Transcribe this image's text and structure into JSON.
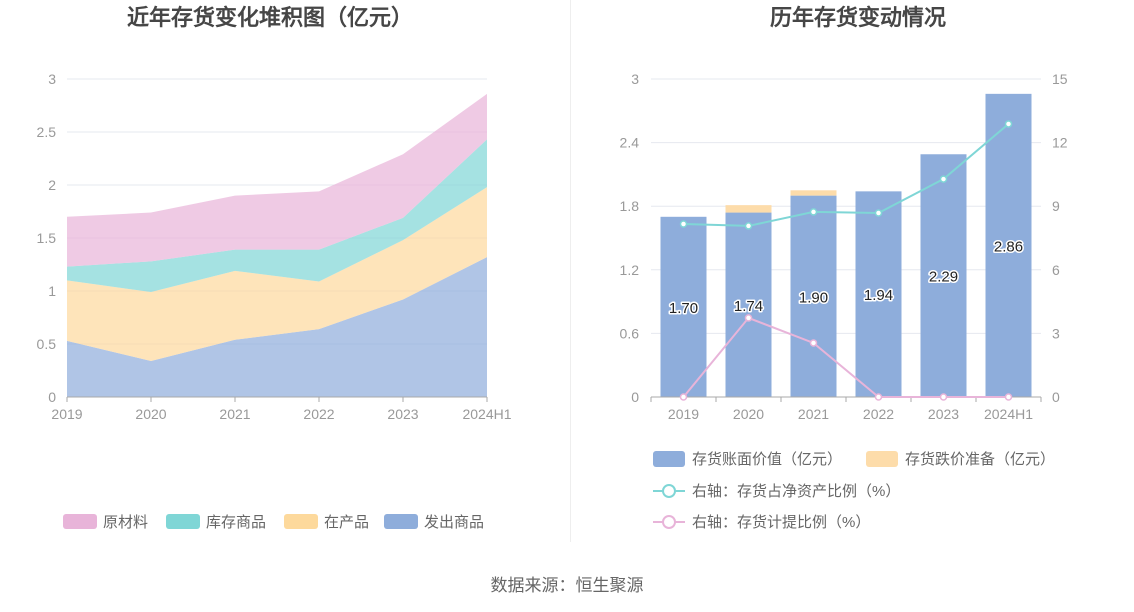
{
  "chart_data": [
    {
      "type": "area",
      "stacked": true,
      "title": "近年存货变化堆积图（亿元）",
      "categories": [
        "2019",
        "2020",
        "2021",
        "2022",
        "2023",
        "2024H1"
      ],
      "series": [
        {
          "name": "原材料",
          "values": [
            0.47,
            0.46,
            0.51,
            0.55,
            0.6,
            0.43
          ],
          "color": "#e8b4d9"
        },
        {
          "name": "库存商品",
          "values": [
            0.13,
            0.29,
            0.2,
            0.3,
            0.21,
            0.45
          ],
          "color": "#7fd6d6"
        },
        {
          "name": "在产品",
          "values": [
            0.57,
            0.65,
            0.65,
            0.45,
            0.56,
            0.66
          ],
          "color": "#fdd99c"
        },
        {
          "name": "发出商品",
          "values": [
            0.53,
            0.34,
            0.54,
            0.64,
            0.92,
            1.32
          ],
          "color": "#8eaddb"
        }
      ],
      "ylim": [
        0,
        3
      ],
      "yticks": [
        0,
        0.5,
        1,
        1.5,
        2,
        2.5,
        3
      ],
      "grid": true,
      "legend": "bottom"
    },
    {
      "type": "bar",
      "title": "历年存货变动情况",
      "categories": [
        "2019",
        "2020",
        "2021",
        "2022",
        "2023",
        "2024H1"
      ],
      "series": [
        {
          "name": "存货账面价值（亿元）",
          "type": "bar",
          "axis": "left",
          "values": [
            1.7,
            1.74,
            1.9,
            1.94,
            2.29,
            2.86
          ],
          "color": "#8eaddb"
        },
        {
          "name": "存货跌价准备（亿元）",
          "type": "bar",
          "axis": "left",
          "values": [
            0,
            0.07,
            0.05,
            0,
            0,
            0
          ],
          "color": "#fddcaa"
        },
        {
          "name": "右轴：存货占净资产比例（%）",
          "type": "line",
          "axis": "right",
          "values": [
            8.16,
            8.07,
            8.73,
            8.68,
            10.28,
            12.88
          ],
          "color": "#7fd6d6"
        },
        {
          "name": "右轴：存货计提比例（%）",
          "type": "line",
          "axis": "right",
          "values": [
            0,
            3.73,
            2.55,
            0,
            0,
            0
          ],
          "color": "#e8b4d9"
        }
      ],
      "data_labels": [
        "1.70",
        "1.74",
        "1.90",
        "1.94",
        "2.29",
        "2.86"
      ],
      "ylim": [
        0,
        3
      ],
      "yticks": [
        0,
        0.6,
        1.2,
        1.8,
        2.4,
        3
      ],
      "y2lim": [
        0,
        15
      ],
      "y2ticks": [
        0,
        3,
        6,
        9,
        12,
        15
      ],
      "grid": true,
      "legend": "bottom"
    }
  ],
  "footer": {
    "source": "数据来源：恒生聚源"
  }
}
